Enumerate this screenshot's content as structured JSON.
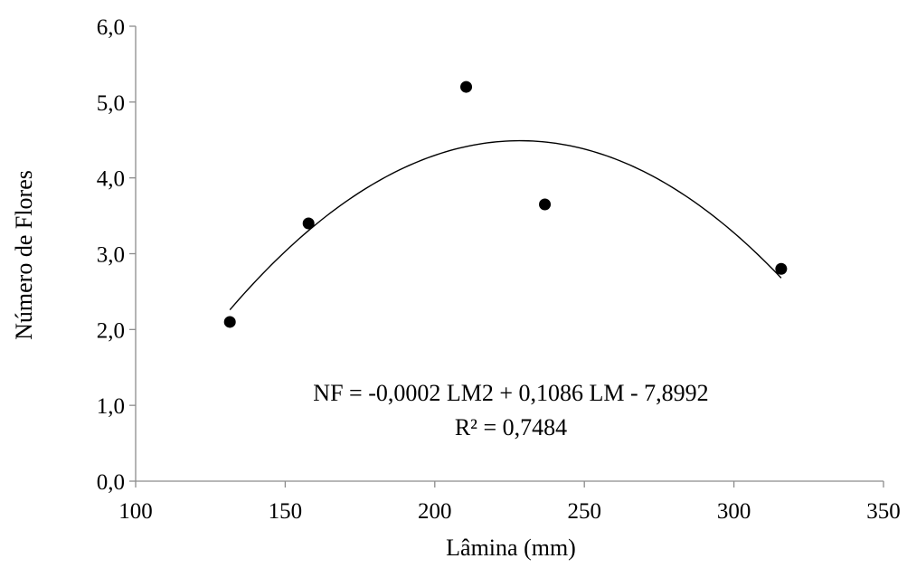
{
  "chart_data": {
    "type": "scatter",
    "title": "",
    "xlabel": "Lâmina (mm)",
    "ylabel": "Número de Flores",
    "xlim": [
      100,
      350
    ],
    "ylim": [
      0,
      6
    ],
    "x_ticks": [
      100,
      150,
      200,
      250,
      300,
      350
    ],
    "y_ticks": [
      0,
      1,
      2,
      3,
      4,
      5,
      6
    ],
    "y_tick_labels": [
      "0,0",
      "1,0",
      "2,0",
      "3,0",
      "4,0",
      "5,0",
      "6,0"
    ],
    "x_tick_labels": [
      "100",
      "150",
      "200",
      "250",
      "300",
      "350"
    ],
    "grid": false,
    "legend": "none",
    "points": [
      {
        "x": 131.5,
        "y": 2.1
      },
      {
        "x": 157.8,
        "y": 3.4
      },
      {
        "x": 210.5,
        "y": 5.2
      },
      {
        "x": 236.8,
        "y": 3.65
      },
      {
        "x": 315.8,
        "y": 2.8
      }
    ],
    "trendline": {
      "type": "polynomial-2",
      "x_range": [
        131.5,
        315.8
      ],
      "vertex": {
        "x": 228.5,
        "y": 4.49
      },
      "endpoints": [
        {
          "x": 131.5,
          "y": 2.26
        },
        {
          "x": 315.8,
          "y": 2.68
        }
      ]
    },
    "annotations": {
      "equation": "NF = -0,0002 LM2 + 0,1086 LM - 7,8992",
      "r_squared": "R² = 0,7484"
    },
    "colors": {
      "points": "#000000",
      "line": "#000000",
      "axis": "#8c8c8c"
    }
  }
}
